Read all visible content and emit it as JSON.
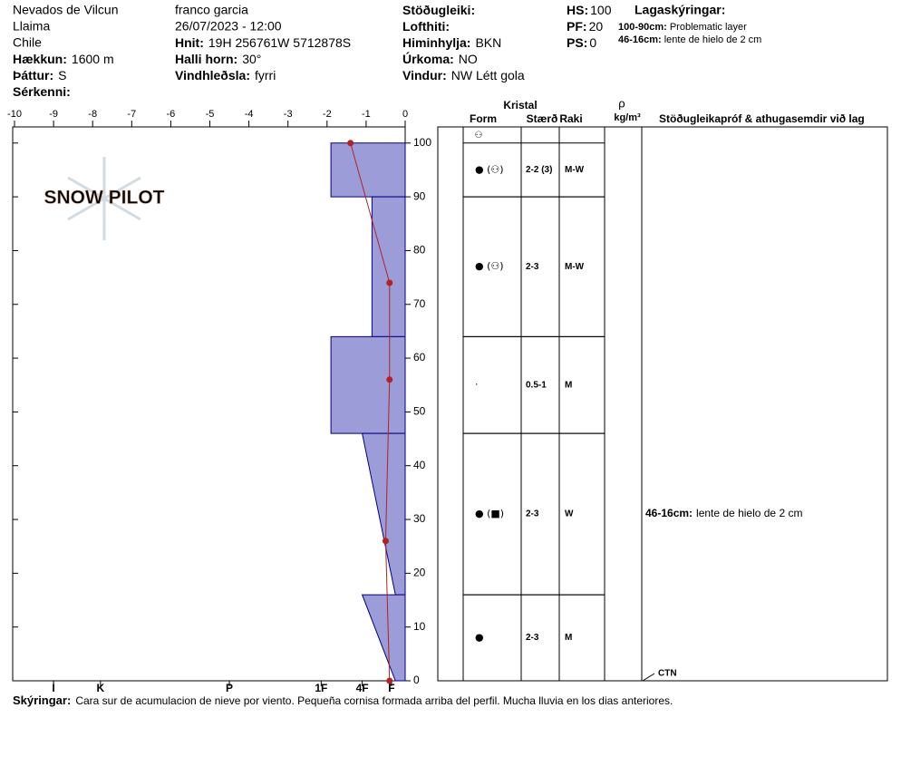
{
  "header": {
    "columns": [
      [
        {
          "text": "Nevados de Vilcun"
        },
        {
          "text": "Llaima"
        },
        {
          "text": "Chile"
        },
        {
          "label": "Hækkun:",
          "value": "1600 m"
        },
        {
          "label": "Þáttur:",
          "value": "S"
        },
        {
          "label": "Sérkenni:"
        }
      ],
      [
        {
          "text": "franco garcia"
        },
        {
          "text": "26/07/2023 - 12:00"
        },
        {
          "label": "Hnit:",
          "value": "19H 256761W 5712878S"
        },
        {
          "label": "Halli horn:",
          "value": "30°"
        },
        {
          "label": "Vindhleðsla:",
          "value": "fyrri"
        }
      ],
      [
        {
          "label": "Stöðugleiki:"
        },
        {
          "label": "Lofthiti:"
        },
        {
          "label": "Himinhylja:",
          "value": "BKN"
        },
        {
          "label": "Úrkoma:",
          "value": "NO"
        },
        {
          "label": "Vindur:",
          "value": "NW Létt gola"
        }
      ],
      [
        {
          "label": "HS:",
          "value": "100"
        },
        {
          "label": "PF:",
          "value": "20"
        },
        {
          "label": "PS:",
          "value": "0"
        }
      ]
    ],
    "notes_title": "Lagaskýringar:",
    "notes": [
      {
        "range": "100-90cm:",
        "text": "Problematic layer"
      },
      {
        "range": "46-16cm:",
        "text": "lente de hielo de 2 cm"
      }
    ]
  },
  "logo": "SNOW PILOT",
  "chart_data": {
    "type": "snow-profile",
    "xlim": [
      -10,
      0
    ],
    "xticks": [
      -10,
      -9,
      -8,
      -7,
      -6,
      -5,
      -4,
      -3,
      -2,
      -1,
      0
    ],
    "ylim": [
      0,
      103
    ],
    "yticks": [
      0,
      10,
      20,
      30,
      40,
      50,
      60,
      70,
      80,
      90,
      100
    ],
    "hardness_ticks": [
      {
        "value": -9,
        "label": "I"
      },
      {
        "value": -7.8,
        "label": "K"
      },
      {
        "value": -4.5,
        "label": "P"
      },
      {
        "value": -2.15,
        "label": "1F"
      },
      {
        "value": -1.1,
        "label": "4F"
      },
      {
        "value": -0.35,
        "label": "F"
      }
    ],
    "layer_color": "#9c9cd8",
    "layers": [
      {
        "top": 100,
        "bottom": 90,
        "hardness_top": -1.9,
        "hardness_bottom": -1.9,
        "form": "● (⚇)",
        "size": "2-2 (3)",
        "moisture": "M-W"
      },
      {
        "top": 90,
        "bottom": 64,
        "hardness_top": -0.85,
        "hardness_bottom": -0.85,
        "form": "● (⚇)",
        "size": "2-3",
        "moisture": "M-W"
      },
      {
        "top": 64,
        "bottom": 46,
        "hardness_top": -1.9,
        "hardness_bottom": -1.9,
        "form": "·",
        "size": "0.5-1",
        "moisture": "M"
      },
      {
        "top": 46,
        "bottom": 16,
        "hardness_top": -1.1,
        "hardness_bottom": -0.25,
        "form": "● (■)",
        "size": "2-3",
        "moisture": "W",
        "comment_range": "46-16cm:",
        "comment": "lente de hielo de 2 cm"
      },
      {
        "top": 16,
        "bottom": 0,
        "hardness_top": -1.1,
        "hardness_bottom": -0.25,
        "form": "●",
        "size": "2-3",
        "moisture": "M"
      }
    ],
    "temperature": {
      "color": "#b22222",
      "heights": [
        100,
        74,
        56,
        26,
        0
      ],
      "values": [
        -1.4,
        -0.4,
        -0.4,
        -0.5,
        -0.4
      ]
    },
    "table": {
      "title": "Kristal",
      "headers": [
        "Form",
        "Stærð",
        "Raki"
      ],
      "density_symbol": "ρ",
      "density_unit": "kg/m³",
      "tests_header": "Stöðugleikapróf & athugasemdir við lag",
      "surface_form": "⚇"
    },
    "tests": [
      {
        "result": "CTN",
        "height": 0
      }
    ]
  },
  "footer": {
    "label": "Skýringar:",
    "text": "Cara sur de acumulacion de nieve por viento. Pequeña cornisa formada arriba del perfil. Mucha lluvia en los dias anteriores."
  }
}
